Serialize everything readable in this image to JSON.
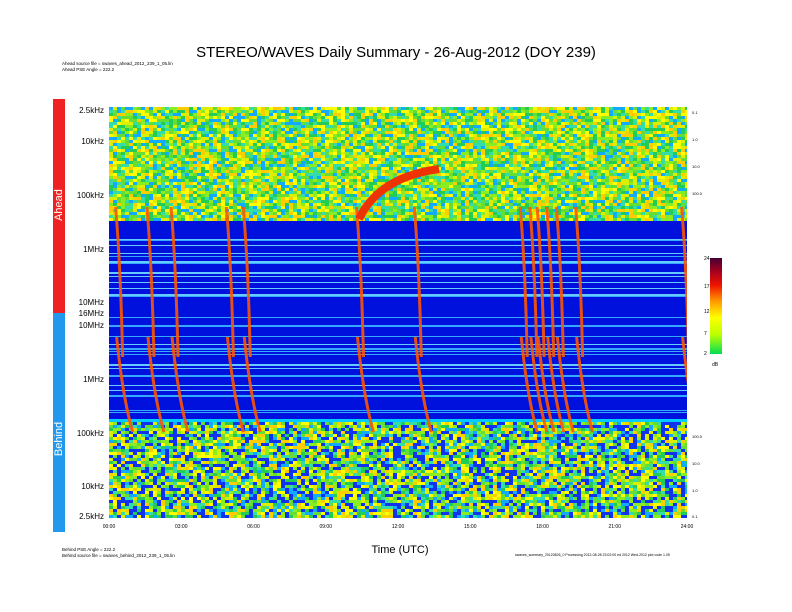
{
  "title": "STEREO/WAVES Daily Summary - 26-Aug-2012 (DOY 239)",
  "header_lines": [
    "Ahead source file = swaves_ahead_2012_239_1_05.lin",
    "Ahead PSE Angle = 222.2"
  ],
  "footer_left": [
    "Behind PSE Angle = 222.2",
    "Behind source file = swaves_behind_2012_239_1_05.lin"
  ],
  "footer_right": "swaves_summary_20120826_0 Processing 2012-08-28 23:02:00 ed 2012 Wed-2012 plot code 1.05",
  "sidebar": {
    "ahead_label": "Ahead",
    "behind_label": "Behind",
    "ahead_color": "#ee2222",
    "behind_color": "#2299ee"
  },
  "colorbar": {
    "unit": "dB",
    "ticks": [
      "24",
      "17",
      "12",
      "7",
      "2"
    ]
  },
  "chart_data": {
    "type": "heatmap",
    "title": "STEREO/WAVES Daily Summary - 26-Aug-2012 (DOY 239)",
    "xlabel": "Time (UTC)",
    "x_ticks": [
      "00:00",
      "03:00",
      "06:00",
      "09:00",
      "12:00",
      "15:00",
      "18:00",
      "21:00",
      "24:00"
    ],
    "xlim_hours": [
      0,
      24
    ],
    "panels": [
      {
        "name": "Ahead",
        "y_ticks": [
          "2.5kHz",
          "10kHz",
          "100kHz",
          "1MHz",
          "10MHz",
          "16MHz"
        ],
        "right_ticks": [
          "0.1",
          "1.0",
          "10.0",
          "100.0"
        ]
      },
      {
        "name": "Behind",
        "y_ticks": [
          "10MHz",
          "1MHz",
          "100kHz",
          "10kHz",
          "2.5kHz"
        ],
        "right_ticks": [
          "100.0",
          "10.0",
          "1.0",
          "0.1"
        ]
      }
    ],
    "bursts_hours": [
      0.4,
      1.7,
      2.7,
      5.0,
      5.7,
      10.4,
      12.8,
      17.2,
      17.6,
      17.9,
      18.3,
      18.7,
      19.5,
      23.9
    ],
    "colorbar_range_db": [
      2,
      24
    ],
    "colorbar_ticks": [
      24,
      17,
      12,
      7,
      2
    ]
  }
}
